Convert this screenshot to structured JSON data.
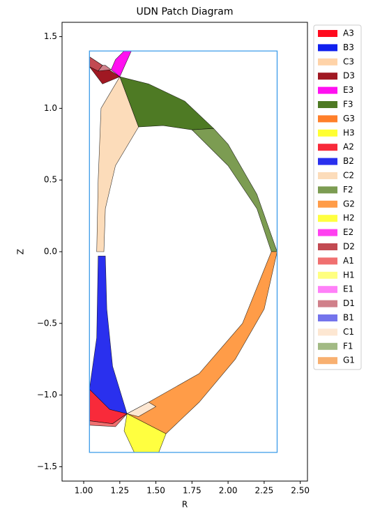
{
  "chart_data": {
    "type": "patch",
    "title": "UDN Patch Diagram",
    "xlabel": "R",
    "ylabel": "Z",
    "xlim": [
      0.85,
      2.55
    ],
    "ylim": [
      -1.6,
      1.6
    ],
    "xticks": [
      {
        "value": 1.0,
        "label": "1.00"
      },
      {
        "value": 1.25,
        "label": "1.25"
      },
      {
        "value": 1.5,
        "label": "1.50"
      },
      {
        "value": 1.75,
        "label": "1.75"
      },
      {
        "value": 2.0,
        "label": "2.00"
      },
      {
        "value": 2.25,
        "label": "2.25"
      },
      {
        "value": 2.5,
        "label": "2.50"
      }
    ],
    "yticks": [
      {
        "value": -1.5,
        "label": "−1.5"
      },
      {
        "value": -1.0,
        "label": "−1.0"
      },
      {
        "value": -0.5,
        "label": "−0.5"
      },
      {
        "value": 0.0,
        "label": "0.0"
      },
      {
        "value": 0.5,
        "label": "0.5"
      },
      {
        "value": 1.0,
        "label": "1.0"
      },
      {
        "value": 1.5,
        "label": "1.5"
      }
    ],
    "boundary": {
      "color": "#3a9be8",
      "points": [
        [
          1.04,
          1.4
        ],
        [
          2.34,
          1.4
        ],
        [
          2.34,
          -1.4
        ],
        [
          1.04,
          -1.4
        ]
      ]
    },
    "legend": "outside upper right",
    "series": [
      {
        "name": "A3",
        "color": "#ff0a1e"
      },
      {
        "name": "B3",
        "color": "#1020ee"
      },
      {
        "name": "C3",
        "color": "#ffd3a8"
      },
      {
        "name": "D3",
        "color": "#a01822",
        "points": [
          [
            1.25,
            1.22
          ],
          [
            1.04,
            1.36
          ],
          [
            1.04,
            1.29
          ],
          [
            1.13,
            1.17
          ]
        ]
      },
      {
        "name": "E3",
        "color": "#ff10f0",
        "points": [
          [
            1.25,
            1.22
          ],
          [
            1.19,
            1.27
          ],
          [
            1.22,
            1.34
          ],
          [
            1.28,
            1.4
          ],
          [
            1.33,
            1.4
          ]
        ]
      },
      {
        "name": "F3",
        "color": "#4e7a24",
        "points": [
          [
            1.25,
            1.22
          ],
          [
            1.45,
            1.17
          ],
          [
            1.7,
            1.05
          ],
          [
            1.9,
            0.86
          ],
          [
            1.75,
            0.85
          ],
          [
            1.55,
            0.88
          ],
          [
            1.38,
            0.87
          ]
        ]
      },
      {
        "name": "G3",
        "color": "#ff7f2a"
      },
      {
        "name": "H3",
        "color": "#ffff33"
      },
      {
        "name": "A2",
        "color": "#f82a3a",
        "points": [
          [
            1.04,
            -0.96
          ],
          [
            1.3,
            -1.13
          ],
          [
            1.2,
            -1.2
          ],
          [
            1.04,
            -1.18
          ]
        ]
      },
      {
        "name": "B2",
        "color": "#2a30ee",
        "points": [
          [
            1.1,
            -0.03
          ],
          [
            1.15,
            -0.03
          ],
          [
            1.16,
            -0.4
          ],
          [
            1.2,
            -0.8
          ],
          [
            1.3,
            -1.13
          ],
          [
            1.18,
            -1.1
          ],
          [
            1.04,
            -0.96
          ],
          [
            1.09,
            -0.6
          ]
        ]
      },
      {
        "name": "C2",
        "color": "#fcdcba",
        "points": [
          [
            1.09,
            0.0
          ],
          [
            1.1,
            0.5
          ],
          [
            1.12,
            1.0
          ],
          [
            1.25,
            1.22
          ],
          [
            1.38,
            0.87
          ],
          [
            1.22,
            0.6
          ],
          [
            1.15,
            0.3
          ],
          [
            1.14,
            0.0
          ]
        ]
      },
      {
        "name": "F2",
        "color": "#7c9c52",
        "points": [
          [
            1.9,
            0.86
          ],
          [
            2.0,
            0.75
          ],
          [
            2.2,
            0.4
          ],
          [
            2.34,
            0.0
          ],
          [
            2.3,
            0.0
          ],
          [
            2.2,
            0.3
          ],
          [
            2.0,
            0.6
          ],
          [
            1.75,
            0.85
          ]
        ]
      },
      {
        "name": "G2",
        "color": "#ff9c48",
        "points": [
          [
            1.3,
            -1.13
          ],
          [
            1.45,
            -1.05
          ],
          [
            1.8,
            -0.85
          ],
          [
            2.1,
            -0.5
          ],
          [
            2.3,
            0.0
          ],
          [
            2.34,
            0.0
          ],
          [
            2.25,
            -0.4
          ],
          [
            2.05,
            -0.75
          ],
          [
            1.8,
            -1.05
          ],
          [
            1.57,
            -1.27
          ]
        ]
      },
      {
        "name": "H2",
        "color": "#ffff40",
        "points": [
          [
            1.3,
            -1.13
          ],
          [
            1.57,
            -1.27
          ],
          [
            1.52,
            -1.4
          ],
          [
            1.35,
            -1.4
          ],
          [
            1.28,
            -1.25
          ]
        ]
      },
      {
        "name": "E2",
        "color": "#ff40f0"
      },
      {
        "name": "D2",
        "color": "#c24a52",
        "points": [
          [
            1.04,
            1.29
          ],
          [
            1.1,
            1.26
          ],
          [
            1.13,
            1.3
          ],
          [
            1.04,
            1.36
          ]
        ]
      },
      {
        "name": "A1",
        "color": "#f07070",
        "points": [
          [
            1.04,
            -1.18
          ],
          [
            1.2,
            -1.2
          ],
          [
            1.3,
            -1.13
          ],
          [
            1.22,
            -1.22
          ],
          [
            1.04,
            -1.21
          ]
        ]
      },
      {
        "name": "H1",
        "color": "#ffff80"
      },
      {
        "name": "E1",
        "color": "#ff80f8"
      },
      {
        "name": "D1",
        "color": "#d0808a",
        "points": [
          [
            1.1,
            1.26
          ],
          [
            1.19,
            1.27
          ],
          [
            1.15,
            1.3
          ],
          [
            1.13,
            1.3
          ]
        ]
      },
      {
        "name": "B1",
        "color": "#7474ec"
      },
      {
        "name": "C1",
        "color": "#fde7d2",
        "points": [
          [
            1.3,
            -1.13
          ],
          [
            1.45,
            -1.05
          ],
          [
            1.5,
            -1.08
          ],
          [
            1.38,
            -1.15
          ]
        ]
      },
      {
        "name": "F1",
        "color": "#a2ba84"
      },
      {
        "name": "G1",
        "color": "#f8b070"
      }
    ]
  }
}
